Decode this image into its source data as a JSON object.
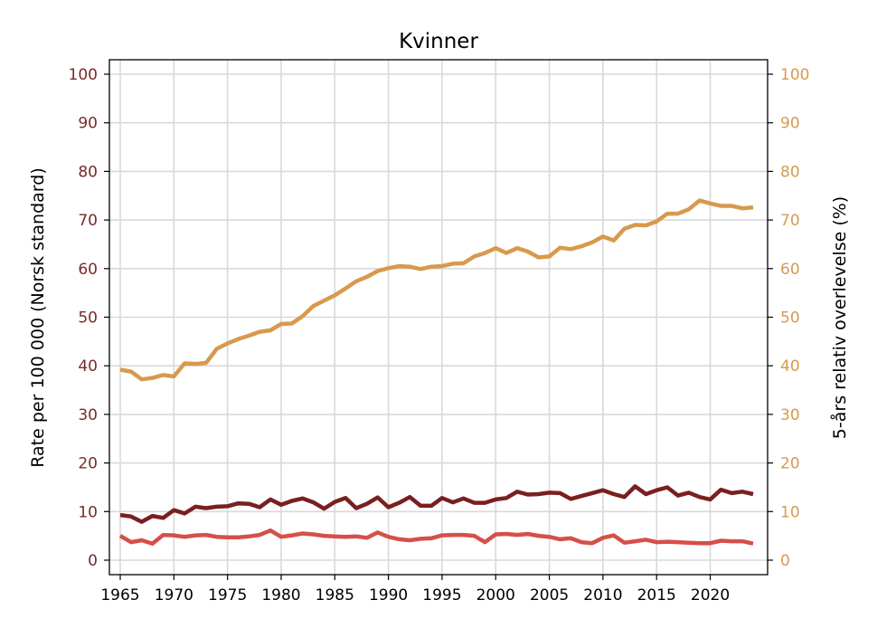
{
  "chart_data": {
    "type": "line",
    "title": "Kvinner",
    "ylabel_left": "Rate per 100 000 (Norsk standard)",
    "ylabel_right": "5-års relativ overlevelse (%)",
    "xlim": [
      1965,
      2024
    ],
    "ylim_left": [
      0,
      100
    ],
    "ylim_right": [
      0,
      100
    ],
    "x_ticks": [
      1965,
      1970,
      1975,
      1980,
      1985,
      1990,
      1995,
      2000,
      2005,
      2010,
      2015,
      2020
    ],
    "y_ticks_left": [
      0,
      10,
      20,
      30,
      40,
      50,
      60,
      70,
      80,
      90,
      100
    ],
    "y_ticks_right": [
      0,
      10,
      20,
      30,
      40,
      50,
      60,
      70,
      80,
      90,
      100
    ],
    "grid": true,
    "colors": {
      "left_axis": "#7a2a2a",
      "right_axis": "#d79a4c",
      "grid": "#d9d9d9"
    },
    "x": [
      1965,
      1966,
      1967,
      1968,
      1969,
      1970,
      1971,
      1972,
      1973,
      1974,
      1975,
      1976,
      1977,
      1978,
      1979,
      1980,
      1981,
      1982,
      1983,
      1984,
      1985,
      1986,
      1987,
      1988,
      1989,
      1990,
      1991,
      1992,
      1993,
      1994,
      1995,
      1996,
      1997,
      1998,
      1999,
      2000,
      2001,
      2002,
      2003,
      2004,
      2005,
      2006,
      2007,
      2008,
      2009,
      2010,
      2011,
      2012,
      2013,
      2014,
      2015,
      2016,
      2017,
      2018,
      2019,
      2020,
      2021,
      2022,
      2023,
      2024
    ],
    "series": [
      {
        "axis": "right",
        "color": "#d79a4c",
        "values": [
          39.2,
          38.8,
          37.2,
          37.5,
          38.1,
          37.8,
          40.5,
          40.4,
          40.6,
          43.5,
          44.6,
          45.5,
          46.2,
          47.0,
          47.3,
          48.6,
          48.7,
          50.2,
          52.3,
          53.4,
          54.5,
          55.9,
          57.4,
          58.3,
          59.5,
          60.1,
          60.5,
          60.4,
          59.9,
          60.4,
          60.5,
          61.0,
          61.1,
          62.5,
          63.2,
          64.2,
          63.2,
          64.2,
          63.5,
          62.3,
          62.5,
          64.3,
          64.0,
          64.6,
          65.4,
          66.6,
          65.8,
          68.2,
          69.0,
          68.9,
          69.7,
          71.3,
          71.3,
          72.2,
          74.0,
          73.4,
          72.9,
          72.9,
          72.4,
          72.6
        ]
      },
      {
        "axis": "left",
        "color": "#7a1f1f",
        "values": [
          9.3,
          9.0,
          7.9,
          9.1,
          8.7,
          10.3,
          9.6,
          11.0,
          10.7,
          11.0,
          11.1,
          11.7,
          11.6,
          10.9,
          12.5,
          11.4,
          12.2,
          12.7,
          11.9,
          10.6,
          12.0,
          12.8,
          10.7,
          11.6,
          12.9,
          10.9,
          11.8,
          13.0,
          11.2,
          11.2,
          12.8,
          11.9,
          12.7,
          11.8,
          11.8,
          12.5,
          12.8,
          14.1,
          13.5,
          13.6,
          13.9,
          13.8,
          12.6,
          13.2,
          13.8,
          14.4,
          13.6,
          13.0,
          15.2,
          13.6,
          14.4,
          15.0,
          13.3,
          13.9,
          13.0,
          12.5,
          14.5,
          13.8,
          14.1,
          13.6
        ]
      },
      {
        "axis": "left",
        "color": "#d64f4a",
        "values": [
          5.0,
          3.7,
          4.1,
          3.4,
          5.2,
          5.1,
          4.8,
          5.1,
          5.2,
          4.8,
          4.7,
          4.7,
          4.9,
          5.2,
          6.1,
          4.8,
          5.1,
          5.5,
          5.3,
          5.0,
          4.9,
          4.8,
          4.9,
          4.6,
          5.7,
          4.8,
          4.3,
          4.1,
          4.4,
          4.5,
          5.1,
          5.2,
          5.2,
          5.0,
          3.7,
          5.3,
          5.4,
          5.2,
          5.4,
          5.0,
          4.8,
          4.3,
          4.5,
          3.7,
          3.5,
          4.6,
          5.1,
          3.6,
          3.9,
          4.2,
          3.7,
          3.8,
          3.7,
          3.6,
          3.5,
          3.5,
          4.0,
          3.9,
          3.9,
          3.4
        ]
      }
    ]
  }
}
